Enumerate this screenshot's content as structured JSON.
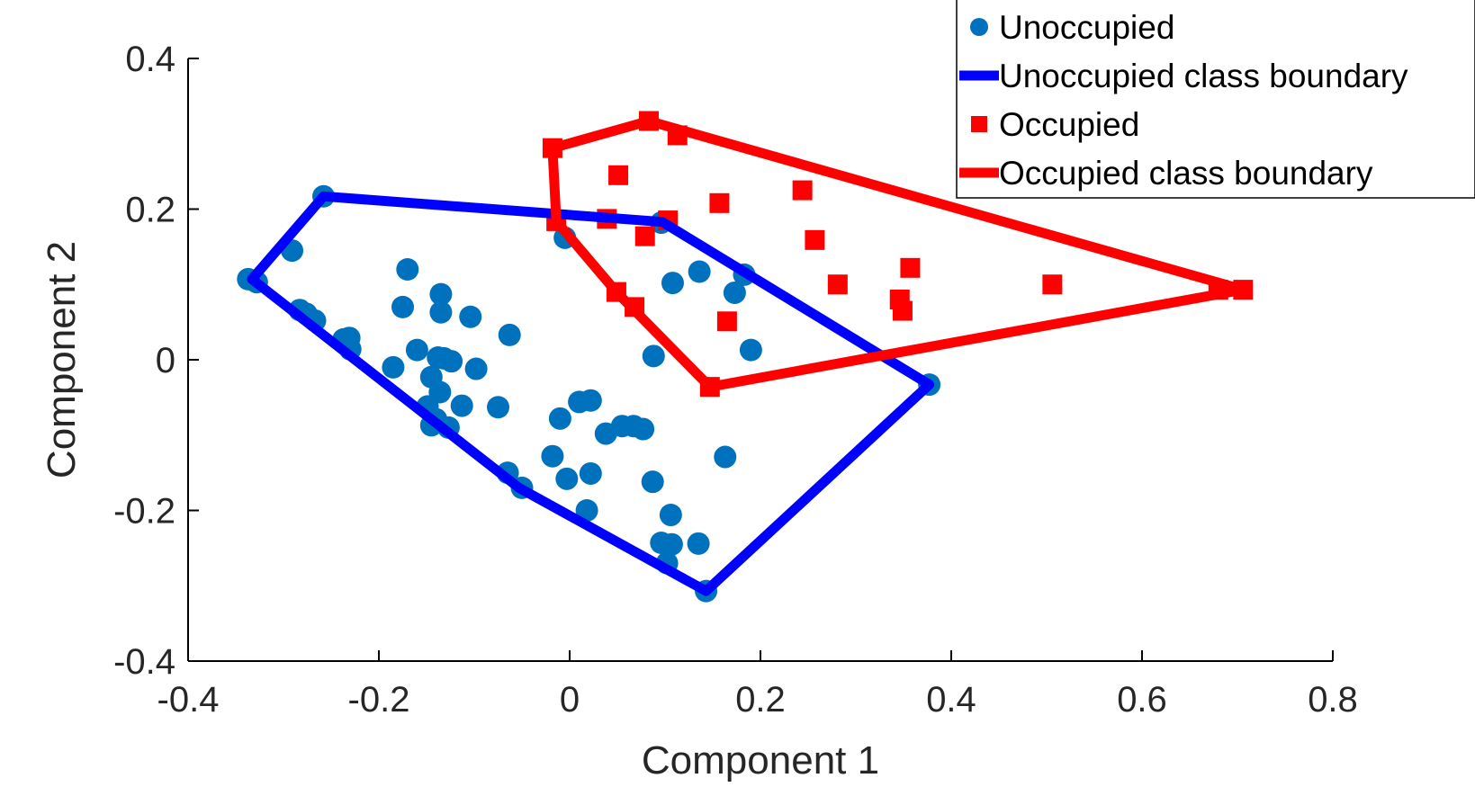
{
  "chart_data": {
    "type": "scatter",
    "xlabel": "Component 1",
    "ylabel": "Component 2",
    "xlim": [
      -0.4,
      0.8
    ],
    "ylim": [
      -0.4,
      0.4
    ],
    "x_ticks": [
      "-0.4",
      "-0.2",
      "0",
      "0.2",
      "0.4",
      "0.6",
      "0.8"
    ],
    "y_ticks": [
      "-0.4",
      "-0.2",
      "0",
      "0.2",
      "0.4"
    ],
    "x_tick_values": [
      -0.4,
      -0.2,
      0,
      0.2,
      0.4,
      0.6,
      0.8
    ],
    "y_tick_values": [
      -0.4,
      -0.2,
      0,
      0.2,
      0.4
    ],
    "grid": false,
    "legend_position": "top-right",
    "series": [
      {
        "name": "Unoccupied",
        "kind": "points",
        "marker": "circle",
        "color": "#0072BD",
        "points": [
          [
            -0.258,
            0.217
          ],
          [
            -0.337,
            0.107
          ],
          [
            -0.328,
            0.103
          ],
          [
            -0.291,
            0.145
          ],
          [
            -0.283,
            0.066
          ],
          [
            -0.276,
            0.061
          ],
          [
            -0.267,
            0.052
          ],
          [
            -0.237,
            0.027
          ],
          [
            -0.231,
            0.029
          ],
          [
            -0.23,
            0.014
          ],
          [
            -0.17,
            0.12
          ],
          [
            -0.175,
            0.07
          ],
          [
            -0.135,
            0.087
          ],
          [
            -0.135,
            0.063
          ],
          [
            -0.16,
            0.013
          ],
          [
            -0.185,
            -0.01
          ],
          [
            -0.138,
            0.003
          ],
          [
            -0.132,
            0.002
          ],
          [
            -0.124,
            -0.002
          ],
          [
            -0.104,
            0.057
          ],
          [
            -0.098,
            -0.012
          ],
          [
            -0.145,
            -0.023
          ],
          [
            -0.136,
            -0.043
          ],
          [
            -0.149,
            -0.062
          ],
          [
            -0.113,
            -0.061
          ],
          [
            -0.14,
            -0.079
          ],
          [
            -0.127,
            -0.09
          ],
          [
            -0.145,
            -0.087
          ],
          [
            -0.075,
            -0.063
          ],
          [
            -0.063,
            0.033
          ],
          [
            -0.065,
            -0.15
          ],
          [
            -0.05,
            -0.17
          ],
          [
            -0.005,
            0.162
          ],
          [
            -0.01,
            -0.078
          ],
          [
            -0.018,
            -0.128
          ],
          [
            -0.003,
            -0.158
          ],
          [
            0.01,
            -0.056
          ],
          [
            0.022,
            -0.054
          ],
          [
            0.018,
            -0.2
          ],
          [
            0.022,
            -0.151
          ],
          [
            0.038,
            -0.098
          ],
          [
            0.055,
            -0.088
          ],
          [
            0.067,
            -0.088
          ],
          [
            0.077,
            -0.092
          ],
          [
            0.087,
            -0.162
          ],
          [
            0.088,
            0.005
          ],
          [
            0.096,
            0.182
          ],
          [
            0.108,
            0.102
          ],
          [
            0.136,
            0.117
          ],
          [
            0.183,
            0.113
          ],
          [
            0.173,
            0.089
          ],
          [
            0.19,
            0.013
          ],
          [
            0.163,
            -0.129
          ],
          [
            0.106,
            -0.206
          ],
          [
            0.096,
            -0.243
          ],
          [
            0.107,
            -0.245
          ],
          [
            0.135,
            -0.244
          ],
          [
            0.102,
            -0.27
          ],
          [
            0.143,
            -0.307
          ],
          [
            0.377,
            -0.033
          ]
        ]
      },
      {
        "name": "Unoccupied class boundary",
        "kind": "polygon",
        "color": "#0000FF",
        "points": [
          [
            -0.258,
            0.217
          ],
          [
            0.097,
            0.183
          ],
          [
            0.377,
            -0.033
          ],
          [
            0.143,
            -0.307
          ],
          [
            -0.053,
            -0.17
          ],
          [
            -0.333,
            0.107
          ],
          [
            -0.258,
            0.217
          ]
        ]
      },
      {
        "name": "Occupied",
        "kind": "points",
        "marker": "square",
        "color": "#FF0000",
        "points": [
          [
            -0.018,
            0.281
          ],
          [
            -0.014,
            0.184
          ],
          [
            0.083,
            0.317
          ],
          [
            0.113,
            0.298
          ],
          [
            0.051,
            0.245
          ],
          [
            0.039,
            0.187
          ],
          [
            0.079,
            0.164
          ],
          [
            0.103,
            0.185
          ],
          [
            0.157,
            0.208
          ],
          [
            0.244,
            0.225
          ],
          [
            0.257,
            0.159
          ],
          [
            0.281,
            0.1
          ],
          [
            0.346,
            0.08
          ],
          [
            0.349,
            0.065
          ],
          [
            0.357,
            0.122
          ],
          [
            0.506,
            0.1
          ],
          [
            0.049,
            0.09
          ],
          [
            0.068,
            0.07
          ],
          [
            0.165,
            0.051
          ],
          [
            0.147,
            -0.036
          ],
          [
            0.68,
            0.093
          ],
          [
            0.706,
            0.093
          ]
        ]
      },
      {
        "name": "Occupied class boundary",
        "kind": "polygon",
        "color": "#FF0000",
        "points": [
          [
            -0.018,
            0.281
          ],
          [
            0.083,
            0.317
          ],
          [
            0.706,
            0.093
          ],
          [
            0.147,
            -0.036
          ],
          [
            0.049,
            0.09
          ],
          [
            -0.014,
            0.184
          ],
          [
            -0.018,
            0.281
          ]
        ]
      }
    ]
  }
}
